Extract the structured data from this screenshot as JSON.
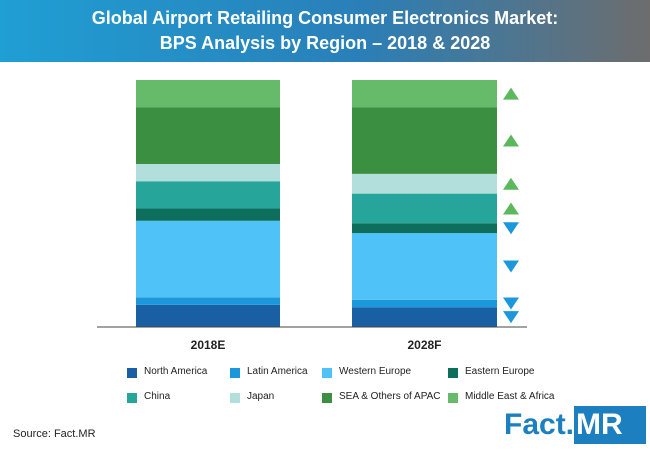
{
  "title": {
    "line1": "Global Airport Retailing Consumer Electronics Market:",
    "line2": "BPS Analysis by Region – 2018 & 2028"
  },
  "chart_data": {
    "type": "bar",
    "stacked": true,
    "normalized": true,
    "categories": [
      "2018E",
      "2028F"
    ],
    "ylim": [
      0,
      100
    ],
    "series": [
      {
        "name": "North America",
        "color": "#1860a3",
        "values": [
          9,
          8
        ],
        "trend": "down"
      },
      {
        "name": "Latin America",
        "color": "#1a98db",
        "values": [
          3,
          3
        ],
        "trend": "down"
      },
      {
        "name": "Western Europe",
        "color": "#4fc2f7",
        "values": [
          31,
          27
        ],
        "trend": "down"
      },
      {
        "name": "Eastern Europe",
        "color": "#0c6e5b",
        "values": [
          5,
          4
        ],
        "trend": "down"
      },
      {
        "name": "China",
        "color": "#26a69a",
        "values": [
          11,
          12
        ],
        "trend": "up"
      },
      {
        "name": "Japan",
        "color": "#b2dfdb",
        "values": [
          7,
          8
        ],
        "trend": "up"
      },
      {
        "name": "SEA & Others of APAC",
        "color": "#3a8f41",
        "values": [
          23,
          27
        ],
        "trend": "up"
      },
      {
        "name": "Middle East & Africa",
        "color": "#66bb6a",
        "values": [
          11,
          11
        ],
        "trend": "up"
      }
    ],
    "legend_position": "bottom",
    "trend_colors": {
      "up": "#5cb85c",
      "down": "#1a98db"
    }
  },
  "source": "Source: Fact.MR",
  "logo": {
    "part1": "Fact.",
    "part2": "MR",
    "color": "#1b7fc0"
  }
}
